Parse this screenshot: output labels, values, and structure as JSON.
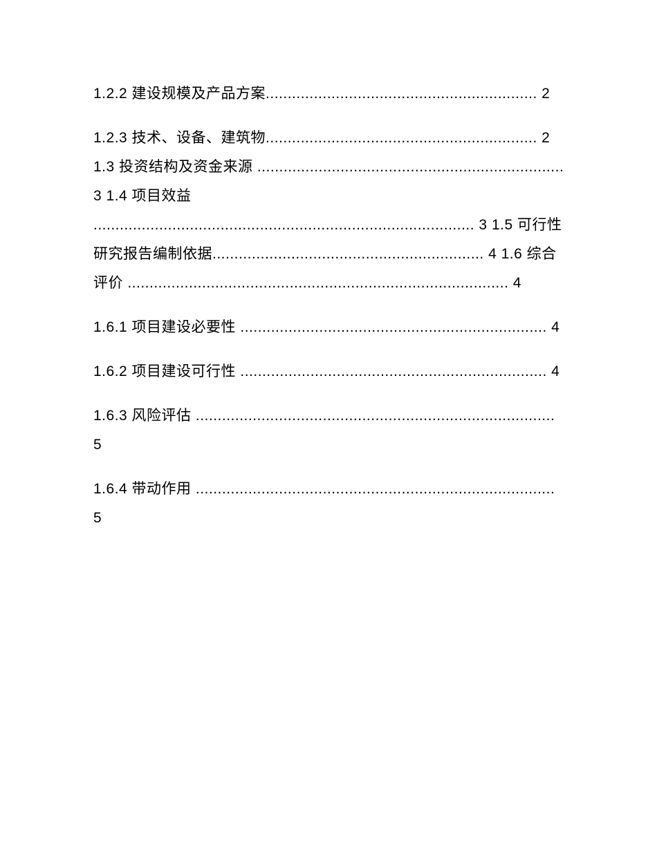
{
  "toc": {
    "entries": [
      "1.2.2 建设规模及产品方案.............................................................. 2",
      "1.2.3 技术、设备、建筑物.............................................................. 2 1.3 投资结构及资金来源 ...................................................................... 3 1.4 项目效益 ....................................................................................... 3 1.5 可行性研究报告编制依据.............................................................. 4 1.6 综合评价 ....................................................................................... 4",
      "1.6.1 项目建设必要性 ...................................................................... 4",
      "1.6.2 项目建设可行性 ...................................................................... 4",
      "1.6.3 风险评估 .................................................................................. 5",
      "1.6.4 带动作用 .................................................................................. 5"
    ]
  },
  "styling": {
    "background_color": "#ffffff",
    "text_color": "#000000",
    "font_size": 21,
    "line_height": 2.0,
    "font_family": "Microsoft YaHei"
  }
}
